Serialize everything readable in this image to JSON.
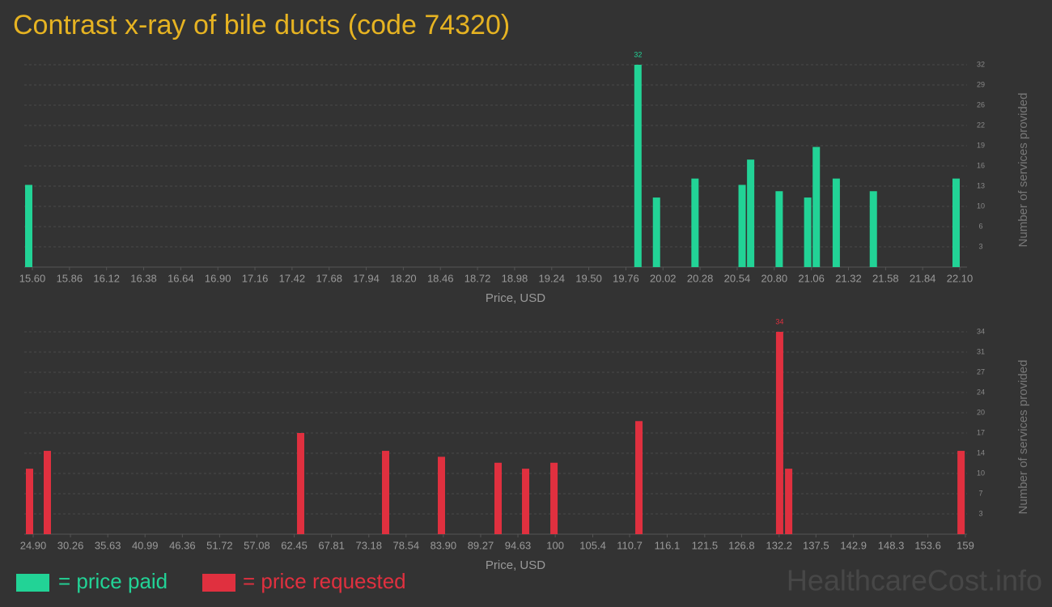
{
  "title": "Contrast x-ray of bile ducts (code 74320)",
  "watermark": "HealthcareCost.info",
  "chart_data": [
    {
      "type": "bar",
      "x": [
        15.6,
        19.87,
        20.0,
        20.27,
        20.6,
        20.66,
        20.86,
        21.06,
        21.12,
        21.26,
        21.52,
        22.1
      ],
      "series": [
        {
          "name": "= price paid",
          "color": "#22d396",
          "values": [
            13,
            32,
            11,
            14,
            13,
            17,
            12,
            11,
            19,
            14,
            12,
            14
          ]
        }
      ],
      "xlim": [
        15.6,
        22.1
      ],
      "xticks": [
        {
          "value": 15.6,
          "label": "15.60"
        },
        15.86,
        16.12,
        16.38,
        16.64,
        {
          "value": 16.9,
          "label": "16.90"
        },
        17.16,
        17.42,
        17.68,
        17.94,
        {
          "value": 18.2,
          "label": "18.20"
        },
        18.46,
        18.72,
        18.98,
        19.24,
        {
          "value": 19.5,
          "label": "19.50"
        },
        19.76,
        20.02,
        20.28,
        20.54,
        {
          "value": 20.8,
          "label": "20.80"
        },
        21.06,
        21.32,
        21.58,
        21.84,
        {
          "value": 22.1,
          "label": "22.10"
        }
      ],
      "ylim": [
        0,
        32
      ],
      "yticks": [
        {
          "value": 3.2,
          "label": "3"
        },
        {
          "value": 6.4,
          "label": "6"
        },
        {
          "value": 9.6,
          "label": "10"
        },
        {
          "value": 12.8,
          "label": "13"
        },
        16,
        {
          "value": 19.2,
          "label": "19"
        },
        {
          "value": 22.4,
          "label": "22"
        },
        {
          "value": 25.6,
          "label": "26"
        },
        {
          "value": 28.8,
          "label": "29"
        },
        32
      ],
      "xlabel": "Price, USD",
      "ylabel": "Number of services provided",
      "grid": true
    },
    {
      "type": "bar",
      "x": [
        24.9,
        27.46,
        63.9,
        76.12,
        84.15,
        92.3,
        96.26,
        100.34,
        112.56,
        132.8,
        134.1,
        158.9
      ],
      "series": [
        {
          "name": "= price requested",
          "color": "#e0303f",
          "values": [
            11,
            14,
            17,
            14,
            13,
            12,
            11,
            12,
            19,
            34,
            11,
            14
          ]
        }
      ],
      "xlim": [
        24.9,
        159
      ],
      "xticks": [
        {
          "value": 24.9,
          "label": "24.90"
        },
        30.26,
        35.63,
        40.99,
        46.36,
        51.72,
        57.08,
        62.45,
        67.81,
        73.18,
        78.54,
        {
          "value": 83.9,
          "label": "83.90"
        },
        89.27,
        94.63,
        100,
        105.4,
        110.7,
        116.1,
        121.5,
        126.8,
        132.2,
        137.5,
        142.9,
        148.3,
        153.6,
        159
      ],
      "ylim": [
        0,
        34
      ],
      "yticks": [
        {
          "value": 3.4,
          "label": "3"
        },
        {
          "value": 6.8,
          "label": "7"
        },
        {
          "value": 10.2,
          "label": "10"
        },
        {
          "value": 13.6,
          "label": "14"
        },
        17,
        {
          "value": 20.4,
          "label": "20"
        },
        {
          "value": 23.8,
          "label": "24"
        },
        {
          "value": 27.2,
          "label": "27"
        },
        {
          "value": 30.6,
          "label": "31"
        },
        34
      ],
      "xlabel": "Price, USD",
      "ylabel": "Number of services provided",
      "grid": true
    }
  ]
}
